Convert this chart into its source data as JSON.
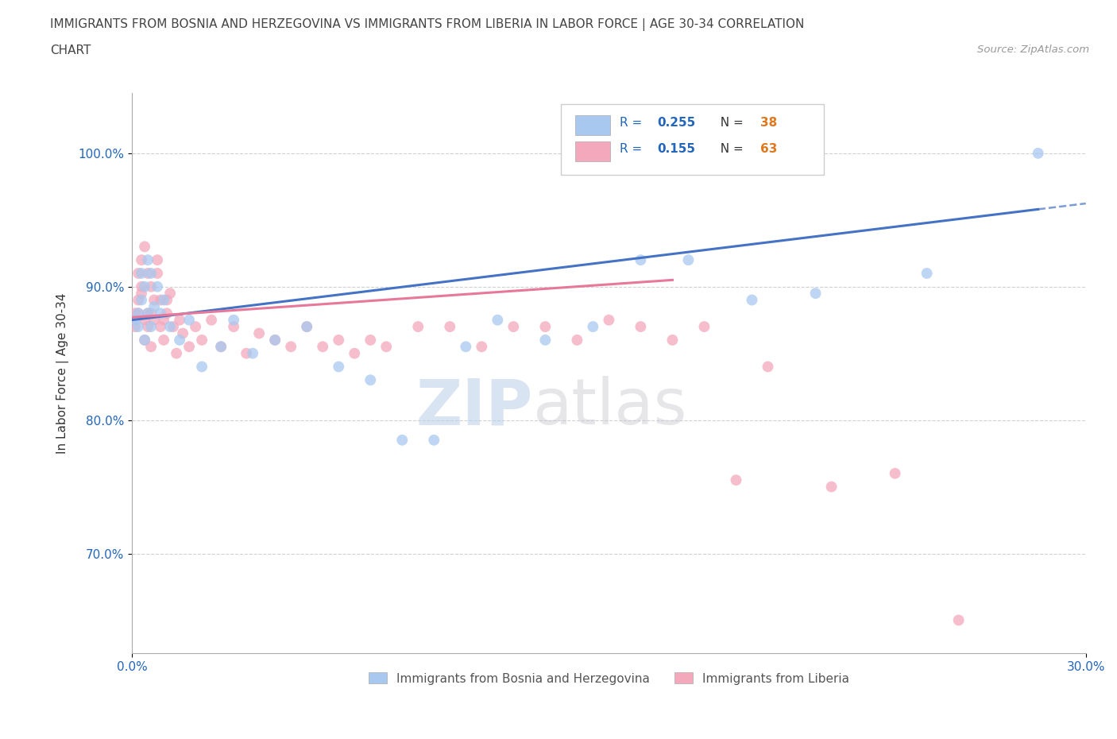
{
  "title_line1": "IMMIGRANTS FROM BOSNIA AND HERZEGOVINA VS IMMIGRANTS FROM LIBERIA IN LABOR FORCE | AGE 30-34 CORRELATION",
  "title_line2": "CHART",
  "source_text": "Source: ZipAtlas.com",
  "ylabel": "In Labor Force | Age 30-34",
  "xlim": [
    0.0,
    0.3
  ],
  "ylim": [
    0.625,
    1.045
  ],
  "bosnia_color": "#a8c8f0",
  "liberia_color": "#f4a8bc",
  "bosnia_line_color": "#4472c4",
  "liberia_line_color": "#e8789a",
  "r_bosnia": 0.255,
  "n_bosnia": 38,
  "r_liberia": 0.155,
  "n_liberia": 63,
  "legend_bosnia_label": "Immigrants from Bosnia and Herzegovina",
  "legend_liberia_label": "Immigrants from Liberia",
  "bosnia_x": [
    0.001,
    0.002,
    0.002,
    0.003,
    0.003,
    0.004,
    0.004,
    0.005,
    0.005,
    0.006,
    0.006,
    0.007,
    0.008,
    0.009,
    0.01,
    0.012,
    0.015,
    0.018,
    0.022,
    0.028,
    0.032,
    0.038,
    0.045,
    0.055,
    0.065,
    0.075,
    0.085,
    0.095,
    0.105,
    0.115,
    0.13,
    0.145,
    0.16,
    0.175,
    0.195,
    0.215,
    0.25,
    0.285
  ],
  "bosnia_y": [
    0.875,
    0.88,
    0.87,
    0.91,
    0.89,
    0.9,
    0.86,
    0.92,
    0.88,
    0.91,
    0.87,
    0.885,
    0.9,
    0.88,
    0.89,
    0.87,
    0.86,
    0.875,
    0.84,
    0.855,
    0.875,
    0.85,
    0.86,
    0.87,
    0.84,
    0.83,
    0.785,
    0.785,
    0.855,
    0.875,
    0.86,
    0.87,
    0.92,
    0.92,
    0.89,
    0.895,
    0.91,
    1.0
  ],
  "liberia_x": [
    0.001,
    0.001,
    0.002,
    0.002,
    0.002,
    0.003,
    0.003,
    0.003,
    0.004,
    0.004,
    0.004,
    0.005,
    0.005,
    0.005,
    0.006,
    0.006,
    0.006,
    0.007,
    0.007,
    0.008,
    0.008,
    0.009,
    0.009,
    0.01,
    0.01,
    0.011,
    0.011,
    0.012,
    0.013,
    0.014,
    0.015,
    0.016,
    0.018,
    0.02,
    0.022,
    0.025,
    0.028,
    0.032,
    0.036,
    0.04,
    0.045,
    0.05,
    0.055,
    0.06,
    0.065,
    0.07,
    0.075,
    0.08,
    0.09,
    0.1,
    0.11,
    0.12,
    0.13,
    0.14,
    0.15,
    0.16,
    0.17,
    0.18,
    0.19,
    0.2,
    0.22,
    0.24,
    0.26
  ],
  "liberia_y": [
    0.88,
    0.87,
    0.89,
    0.88,
    0.91,
    0.895,
    0.92,
    0.9,
    0.875,
    0.86,
    0.93,
    0.88,
    0.91,
    0.87,
    0.9,
    0.88,
    0.855,
    0.875,
    0.89,
    0.91,
    0.92,
    0.87,
    0.89,
    0.875,
    0.86,
    0.89,
    0.88,
    0.895,
    0.87,
    0.85,
    0.875,
    0.865,
    0.855,
    0.87,
    0.86,
    0.875,
    0.855,
    0.87,
    0.85,
    0.865,
    0.86,
    0.855,
    0.87,
    0.855,
    0.86,
    0.85,
    0.86,
    0.855,
    0.87,
    0.87,
    0.855,
    0.87,
    0.87,
    0.86,
    0.875,
    0.87,
    0.86,
    0.87,
    0.755,
    0.84,
    0.75,
    0.76,
    0.65
  ]
}
